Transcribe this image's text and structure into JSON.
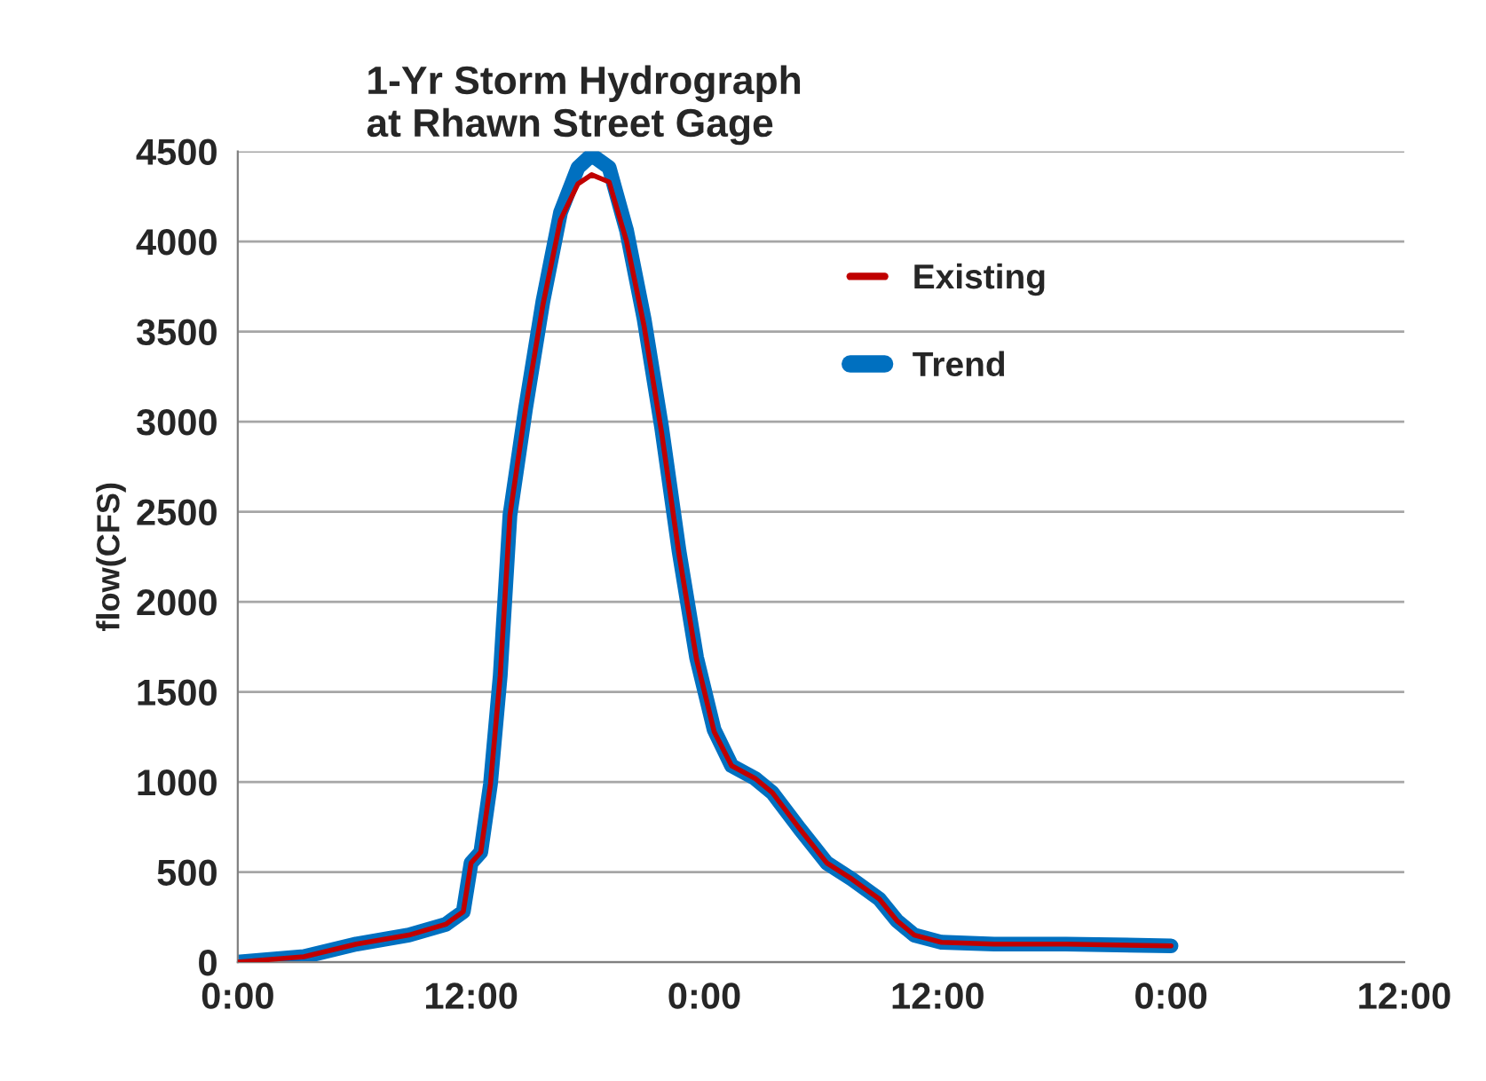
{
  "chart_data": {
    "type": "line",
    "title": "1-Yr Storm Hydrograph\nat Rhawn Street Gage",
    "ylabel": "flow(CFS)",
    "x": [
      "2000-01-01T00:00",
      "2000-01-01T03:24",
      "2000-01-01T06:06",
      "2000-01-01T08:48",
      "2000-01-01T10:42",
      "2000-01-01T11:36",
      "2000-01-01T12:00",
      "2000-01-01T12:30",
      "2000-01-01T13:00",
      "2000-01-01T13:30",
      "2000-01-01T14:00",
      "2000-01-01T14:48",
      "2000-01-01T15:42",
      "2000-01-01T16:36",
      "2000-01-01T17:30",
      "2000-01-01T18:12",
      "2000-01-01T19:06",
      "2000-01-01T20:00",
      "2000-01-01T20:54",
      "2000-01-01T21:48",
      "2000-01-01T22:42",
      "2000-01-01T23:36",
      "2000-01-02T00:30",
      "2000-01-02T01:24",
      "2000-01-02T02:36",
      "2000-01-02T03:30",
      "2000-01-02T04:54",
      "2000-01-02T06:18",
      "2000-01-02T07:36",
      "2000-01-02T09:00",
      "2000-01-02T09:54",
      "2000-01-02T10:48",
      "2000-01-02T12:12",
      "2000-01-02T14:54",
      "2000-01-02T18:36",
      "2000-01-03T00:00"
    ],
    "series": [
      {
        "name": "Existing",
        "color": "#c00000",
        "values": [
          0,
          30,
          100,
          150,
          210,
          280,
          550,
          610,
          990,
          1590,
          2480,
          3070,
          3650,
          4120,
          4320,
          4370,
          4330,
          4000,
          3530,
          2940,
          2260,
          1680,
          1280,
          1090,
          1020,
          940,
          740,
          550,
          460,
          350,
          230,
          150,
          110,
          100,
          100,
          90
        ]
      },
      {
        "name": "Trend",
        "color": "#0070c0",
        "values": [
          0,
          30,
          100,
          150,
          210,
          280,
          550,
          610,
          990,
          1590,
          2480,
          3070,
          3670,
          4160,
          4410,
          4480,
          4410,
          4060,
          3570,
          2970,
          2280,
          1690,
          1290,
          1090,
          1020,
          940,
          740,
          550,
          460,
          350,
          230,
          150,
          110,
          100,
          100,
          90
        ]
      }
    ],
    "xlim": [
      "2000-01-01T00:00",
      "2000-01-03T12:00"
    ],
    "xticks": [
      {
        "value": "2000-01-01T00:00",
        "label": "0:00"
      },
      {
        "value": "2000-01-01T12:00",
        "label": "12:00"
      },
      {
        "value": "2000-01-02T00:00",
        "label": "0:00"
      },
      {
        "value": "2000-01-02T12:00",
        "label": "12:00"
      },
      {
        "value": "2000-01-03T00:00",
        "label": "0:00"
      },
      {
        "value": "2000-01-03T12:00",
        "label": "12:00"
      }
    ],
    "ylim": [
      0,
      4500
    ],
    "yticks": [
      0,
      500,
      1000,
      1500,
      2000,
      2500,
      3000,
      3500,
      4000,
      4500
    ],
    "grid": "y",
    "legend": "top right",
    "marker": "none",
    "line_style": "solid"
  }
}
